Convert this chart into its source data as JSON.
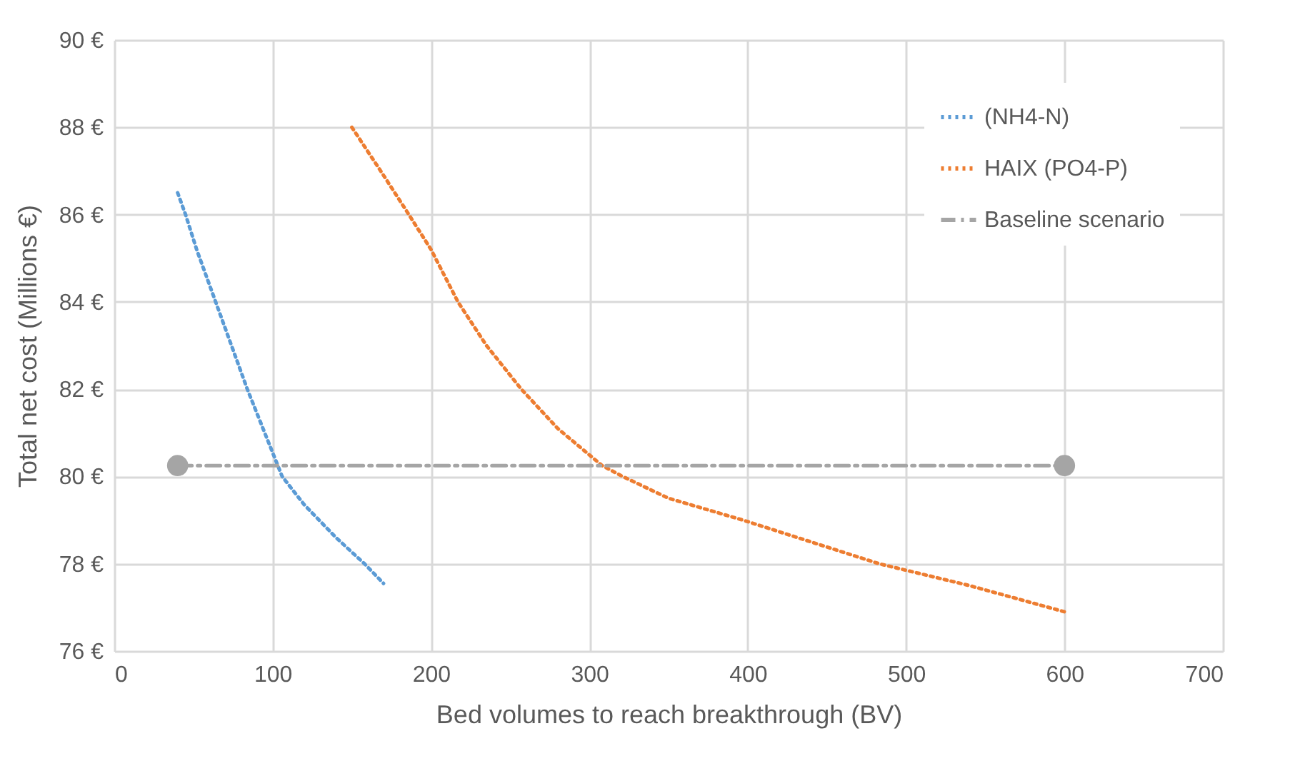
{
  "chart_data": {
    "type": "line",
    "xlabel": "Bed  volumes to reach breakthrough (BV)",
    "ylabel": "Total net cost (Millions €)",
    "xlim": [
      0,
      700
    ],
    "xticks": [
      0,
      100,
      200,
      300,
      400,
      500,
      600,
      700
    ],
    "ylim": [
      76,
      90
    ],
    "yticks": [
      {
        "value": 76,
        "label": "76 €"
      },
      {
        "value": 78,
        "label": "78 €"
      },
      {
        "value": 80,
        "label": "80 €"
      },
      {
        "value": 82,
        "label": "82 €"
      },
      {
        "value": 84,
        "label": "84 €"
      },
      {
        "value": 86,
        "label": "86 €"
      },
      {
        "value": 88,
        "label": "88 €"
      },
      {
        "value": 90,
        "label": "90 €"
      }
    ],
    "grid": true,
    "legend": "top right",
    "series": [
      {
        "name": "(NH4-N)",
        "color": "#5b9bd5",
        "line_style": "dotted",
        "marker": "none",
        "x": [
          40,
          45,
          52,
          64,
          74,
          84,
          95,
          106,
          120,
          140,
          158,
          170
        ],
        "values": [
          86.5,
          86,
          85.2,
          84,
          83,
          82,
          81,
          80,
          79.35,
          78.6,
          78,
          77.55
        ]
      },
      {
        "name": "HAIX (PO4-P)",
        "color": "#ed7d31",
        "line_style": "dotted",
        "marker": "none",
        "x": [
          150,
          170,
          186,
          200,
          217,
          235,
          257,
          280,
          308,
          321,
          350,
          397,
          440,
          483,
          540,
          600
        ],
        "values": [
          88,
          86.9,
          86,
          85.2,
          84,
          83,
          82,
          81.1,
          80.25,
          80,
          79.5,
          79,
          78.5,
          78,
          77.5,
          76.9
        ]
      },
      {
        "name": "Baseline scenario",
        "color": "#a5a5a5",
        "line_style": "dashed",
        "marker": "circle",
        "x": [
          40,
          600
        ],
        "values": [
          80.25,
          80.25
        ]
      }
    ]
  }
}
